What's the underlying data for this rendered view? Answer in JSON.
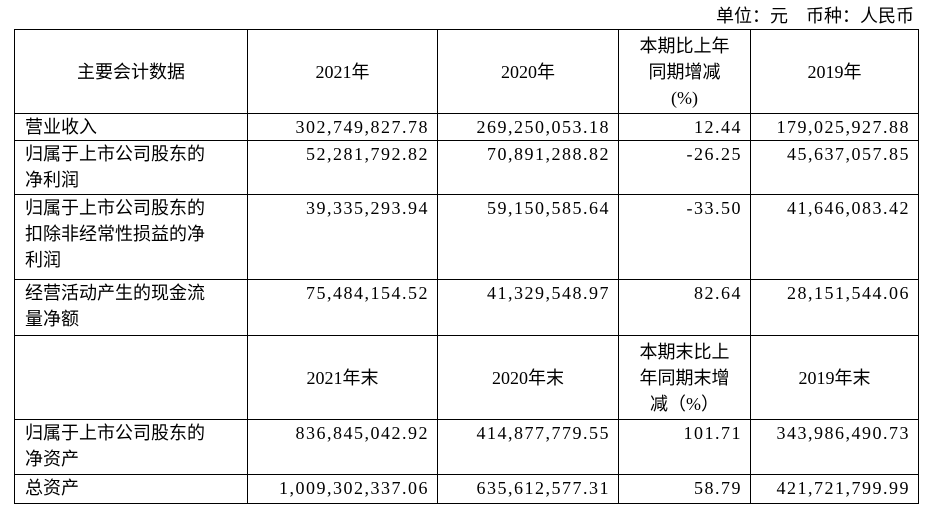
{
  "unit": "单位：元　币种：人民币",
  "table": {
    "sections": [
      {
        "header": [
          "主要会计数据",
          "2021年",
          "2020年",
          "本期比上年\n同期增减\n(%)",
          "2019年"
        ],
        "rows": [
          [
            "营业收入",
            "302,749,827.78",
            "269,250,053.18",
            "12.44",
            "179,025,927.88"
          ],
          [
            "归属于上市公司股东的\n净利润",
            "52,281,792.82",
            "70,891,288.82",
            "-26.25",
            "45,637,057.85"
          ],
          [
            "归属于上市公司股东的\n扣除非经常性损益的净\n利润",
            "39,335,293.94",
            "59,150,585.64",
            "-33.50",
            "41,646,083.42"
          ],
          [
            "经营活动产生的现金流\n量净额",
            "75,484,154.52",
            "41,329,548.97",
            "82.64",
            "28,151,544.06"
          ]
        ]
      },
      {
        "header": [
          "",
          "2021年末",
          "2020年末",
          "本期末比上\n年同期末增\n减（%）",
          "2019年末"
        ],
        "rows": [
          [
            "归属于上市公司股东的\n净资产",
            "836,845,042.92",
            "414,877,779.55",
            "101.71",
            "343,986,490.73"
          ],
          [
            "总资产",
            "1,009,302,337.06",
            "635,612,577.31",
            "58.79",
            "421,721,799.99"
          ]
        ]
      }
    ]
  }
}
